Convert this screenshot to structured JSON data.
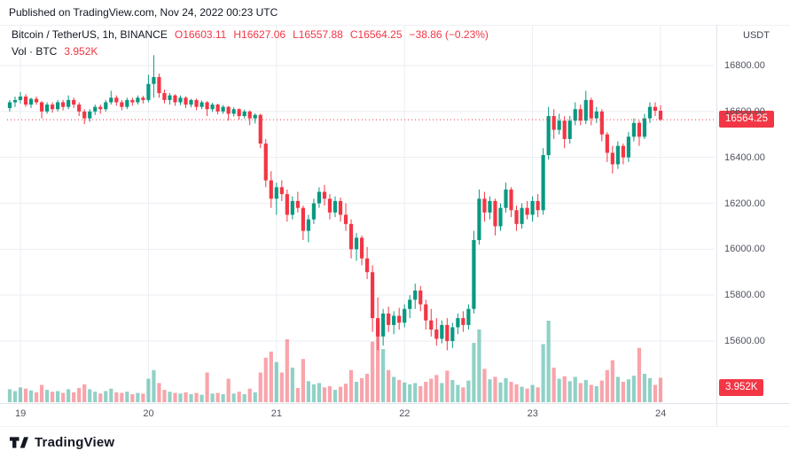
{
  "published_bar": {
    "text": "Published on TradingView.com, Nov 24, 2022 00:23 UTC"
  },
  "legend": {
    "symbol": "Bitcoin / TetherUS, 1h, BINANCE",
    "open": "O16603.11",
    "high": "H16627.06",
    "low": "L16557.88",
    "close": "C16564.25",
    "change": "−38.86 (−0.23%)",
    "volume_label": "Vol · BTC",
    "volume_value": "3.952K"
  },
  "price_scale": {
    "currency": "USDT",
    "price_badge": "16564.25",
    "volume_badge": "3.952K"
  },
  "footer": {
    "brand": "TradingView"
  },
  "colors": {
    "up": "#089981",
    "down": "#F23645",
    "volume_up": "rgba(8,153,129,0.45)",
    "volume_down": "rgba(242,54,69,0.45)",
    "grid": "#EBEEF3",
    "axis_border": "#E0E3EB",
    "badge": "#F23645",
    "axis_text": "#50535E"
  },
  "chart_data": {
    "type": "candlestick+volume",
    "title": "Bitcoin / TetherUS, 1h, BINANCE",
    "timeframe": "1h",
    "currency": "USDT",
    "last_price": 16564.25,
    "last_change": -38.86,
    "last_change_pct": -0.23,
    "last_volume_btc": 3952,
    "ylim": [
      15480,
      16880
    ],
    "y_ticks": [
      {
        "label": "16800.00",
        "price": 16800
      },
      {
        "label": "16600.00",
        "price": 16600
      },
      {
        "label": "16400.00",
        "price": 16400
      },
      {
        "label": "16200.00",
        "price": 16200
      },
      {
        "label": "16000.00",
        "price": 16000
      },
      {
        "label": "15800.00",
        "price": 15800
      },
      {
        "label": "15600.00",
        "price": 15600
      }
    ],
    "x_ticks": [
      {
        "label": "19",
        "index": 2
      },
      {
        "label": "20",
        "index": 26
      },
      {
        "label": "21",
        "index": 50
      },
      {
        "label": "22",
        "index": 74
      },
      {
        "label": "23",
        "index": 98
      },
      {
        "label": "24",
        "index": 122
      }
    ],
    "candles_format": [
      "open",
      "high",
      "low",
      "close",
      "volume_btc"
    ],
    "candles": [
      [
        16615,
        16650,
        16600,
        16640,
        2100
      ],
      [
        16640,
        16665,
        16620,
        16650,
        1800
      ],
      [
        16650,
        16685,
        16635,
        16665,
        2400
      ],
      [
        16665,
        16675,
        16620,
        16630,
        2200
      ],
      [
        16630,
        16660,
        16615,
        16655,
        1900
      ],
      [
        16655,
        16665,
        16630,
        16640,
        1600
      ],
      [
        16640,
        16645,
        16570,
        16600,
        2800
      ],
      [
        16600,
        16640,
        16590,
        16630,
        2000
      ],
      [
        16630,
        16640,
        16595,
        16610,
        1700
      ],
      [
        16610,
        16650,
        16600,
        16640,
        1800
      ],
      [
        16640,
        16650,
        16605,
        16620,
        1500
      ],
      [
        16620,
        16670,
        16610,
        16650,
        2100
      ],
      [
        16650,
        16660,
        16615,
        16630,
        1600
      ],
      [
        16630,
        16640,
        16580,
        16600,
        2300
      ],
      [
        16600,
        16610,
        16545,
        16570,
        2900
      ],
      [
        16570,
        16610,
        16555,
        16600,
        2100
      ],
      [
        16600,
        16630,
        16585,
        16620,
        1700
      ],
      [
        16620,
        16630,
        16590,
        16610,
        1400
      ],
      [
        16610,
        16650,
        16600,
        16640,
        1800
      ],
      [
        16640,
        16690,
        16630,
        16660,
        2200
      ],
      [
        16660,
        16670,
        16625,
        16640,
        1600
      ],
      [
        16640,
        16650,
        16605,
        16620,
        1500
      ],
      [
        16620,
        16660,
        16610,
        16650,
        1700
      ],
      [
        16650,
        16660,
        16625,
        16640,
        1300
      ],
      [
        16640,
        16670,
        16630,
        16660,
        1500
      ],
      [
        16660,
        16668,
        16635,
        16650,
        1400
      ],
      [
        16650,
        16760,
        16640,
        16720,
        3800
      ],
      [
        16720,
        16845,
        16660,
        16750,
        5200
      ],
      [
        16750,
        16765,
        16660,
        16680,
        3100
      ],
      [
        16680,
        16695,
        16635,
        16650,
        2000
      ],
      [
        16650,
        16680,
        16630,
        16670,
        1700
      ],
      [
        16670,
        16675,
        16625,
        16640,
        1500
      ],
      [
        16640,
        16670,
        16628,
        16660,
        1400
      ],
      [
        16660,
        16666,
        16615,
        16630,
        1600
      ],
      [
        16630,
        16655,
        16618,
        16650,
        1300
      ],
      [
        16650,
        16656,
        16605,
        16620,
        1500
      ],
      [
        16620,
        16648,
        16610,
        16640,
        1200
      ],
      [
        16640,
        16645,
        16580,
        16610,
        4800
      ],
      [
        16610,
        16638,
        16598,
        16630,
        1400
      ],
      [
        16630,
        16634,
        16588,
        16600,
        1500
      ],
      [
        16600,
        16628,
        16590,
        16620,
        1300
      ],
      [
        16620,
        16624,
        16560,
        16590,
        3800
      ],
      [
        16590,
        16618,
        16578,
        16610,
        1400
      ],
      [
        16610,
        16614,
        16565,
        16580,
        1700
      ],
      [
        16580,
        16608,
        16570,
        16600,
        1300
      ],
      [
        16600,
        16605,
        16540,
        16570,
        2200
      ],
      [
        16570,
        16592,
        16548,
        16585,
        1600
      ],
      [
        16585,
        16590,
        16440,
        16460,
        4800
      ],
      [
        16460,
        16480,
        16270,
        16300,
        7200
      ],
      [
        16300,
        16340,
        16180,
        16220,
        8200
      ],
      [
        16220,
        16290,
        16150,
        16270,
        6500
      ],
      [
        16270,
        16300,
        16210,
        16240,
        4800
      ],
      [
        16240,
        16260,
        16120,
        16150,
        10200
      ],
      [
        16150,
        16230,
        16130,
        16210,
        5600
      ],
      [
        16210,
        16250,
        16160,
        16180,
        2300
      ],
      [
        16180,
        16190,
        16040,
        16080,
        7000
      ],
      [
        16080,
        16150,
        16030,
        16130,
        3400
      ],
      [
        16130,
        16220,
        16110,
        16200,
        2900
      ],
      [
        16200,
        16270,
        16180,
        16250,
        3100
      ],
      [
        16250,
        16280,
        16190,
        16220,
        2400
      ],
      [
        16220,
        16240,
        16130,
        16160,
        2600
      ],
      [
        16160,
        16230,
        16140,
        16210,
        2000
      ],
      [
        16210,
        16225,
        16120,
        16150,
        2500
      ],
      [
        16150,
        16200,
        16080,
        16110,
        3000
      ],
      [
        16110,
        16130,
        15960,
        16000,
        5200
      ],
      [
        16000,
        16070,
        15950,
        16050,
        3300
      ],
      [
        16050,
        16060,
        15930,
        15960,
        3900
      ],
      [
        15960,
        16010,
        15870,
        15900,
        4600
      ],
      [
        15900,
        15930,
        15640,
        15700,
        9800
      ],
      [
        15700,
        15790,
        15560,
        15620,
        12500
      ],
      [
        15620,
        15740,
        15580,
        15720,
        8600
      ],
      [
        15720,
        15750,
        15640,
        15670,
        5200
      ],
      [
        15670,
        15730,
        15630,
        15710,
        4100
      ],
      [
        15710,
        15745,
        15650,
        15680,
        3600
      ],
      [
        15680,
        15760,
        15660,
        15740,
        3200
      ],
      [
        15740,
        15800,
        15700,
        15780,
        2900
      ],
      [
        15780,
        15850,
        15740,
        15820,
        3100
      ],
      [
        15820,
        15840,
        15730,
        15760,
        2600
      ],
      [
        15760,
        15780,
        15650,
        15690,
        3300
      ],
      [
        15690,
        15740,
        15620,
        15650,
        3800
      ],
      [
        15650,
        15700,
        15580,
        15610,
        4400
      ],
      [
        15610,
        15690,
        15590,
        15670,
        3100
      ],
      [
        15670,
        15700,
        15560,
        15600,
        5100
      ],
      [
        15600,
        15680,
        15570,
        15660,
        3600
      ],
      [
        15660,
        15720,
        15630,
        15700,
        2800
      ],
      [
        15700,
        15730,
        15640,
        15670,
        2400
      ],
      [
        15670,
        15760,
        15650,
        15740,
        3500
      ],
      [
        15740,
        16080,
        15720,
        16040,
        9600
      ],
      [
        16040,
        16260,
        16020,
        16220,
        11800
      ],
      [
        16220,
        16250,
        16120,
        16160,
        5400
      ],
      [
        16160,
        16230,
        16130,
        16210,
        3700
      ],
      [
        16210,
        16220,
        16060,
        16100,
        4100
      ],
      [
        16100,
        16200,
        16080,
        16180,
        3200
      ],
      [
        16180,
        16290,
        16160,
        16260,
        3900
      ],
      [
        16260,
        16270,
        16140,
        16170,
        3300
      ],
      [
        16170,
        16190,
        16080,
        16110,
        2900
      ],
      [
        16110,
        16200,
        16090,
        16180,
        2500
      ],
      [
        16180,
        16210,
        16130,
        16150,
        2200
      ],
      [
        16150,
        16230,
        16120,
        16210,
        2800
      ],
      [
        16210,
        16240,
        16140,
        16170,
        2400
      ],
      [
        16170,
        16440,
        16150,
        16410,
        9400
      ],
      [
        16410,
        16620,
        16390,
        16580,
        13200
      ],
      [
        16580,
        16610,
        16480,
        16520,
        5600
      ],
      [
        16520,
        16590,
        16500,
        16560,
        3800
      ],
      [
        16560,
        16580,
        16440,
        16480,
        4200
      ],
      [
        16480,
        16580,
        16460,
        16560,
        3400
      ],
      [
        16560,
        16640,
        16540,
        16610,
        4100
      ],
      [
        16610,
        16630,
        16540,
        16560,
        3100
      ],
      [
        16560,
        16690,
        16545,
        16650,
        3600
      ],
      [
        16650,
        16660,
        16540,
        16570,
        2800
      ],
      [
        16570,
        16620,
        16550,
        16600,
        2600
      ],
      [
        16600,
        16610,
        16470,
        16500,
        3500
      ],
      [
        16500,
        16510,
        16380,
        16420,
        5200
      ],
      [
        16420,
        16450,
        16330,
        16370,
        6800
      ],
      [
        16370,
        16470,
        16350,
        16450,
        4100
      ],
      [
        16450,
        16460,
        16370,
        16400,
        3300
      ],
      [
        16400,
        16510,
        16380,
        16490,
        3700
      ],
      [
        16490,
        16570,
        16470,
        16550,
        4300
      ],
      [
        16550,
        16560,
        16450,
        16490,
        8800
      ],
      [
        16490,
        16590,
        16480,
        16570,
        4600
      ],
      [
        16570,
        16640,
        16550,
        16620,
        3900
      ],
      [
        16620,
        16640,
        16580,
        16603,
        2800
      ],
      [
        16603.11,
        16627.06,
        16557.88,
        16564.25,
        3952
      ]
    ]
  }
}
